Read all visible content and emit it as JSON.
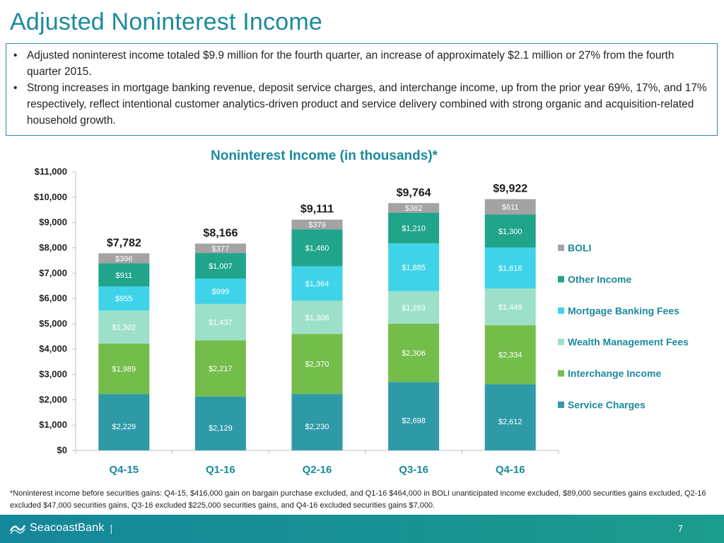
{
  "header": {
    "title": "Adjusted Noninterest Income"
  },
  "bullets": [
    "Adjusted noninterest income totaled $9.9 million for the fourth quarter, an increase of approximately $2.1 million or 27% from the fourth quarter 2015.",
    "Strong increases in mortgage banking revenue, deposit service charges, and interchange income, up from the prior year 69%, 17%, and 17% respectively, reflect intentional customer analytics-driven product and service delivery combined with strong organic and acquisition-related household growth."
  ],
  "chart_data": {
    "type": "bar",
    "stacked": true,
    "title": "Noninterest Income (in thousands)*",
    "xlabel": "",
    "ylabel": "",
    "ylim": [
      0,
      11000
    ],
    "yticks": [
      0,
      1000,
      2000,
      3000,
      4000,
      5000,
      6000,
      7000,
      8000,
      9000,
      10000,
      11000
    ],
    "ytick_labels": [
      "$0",
      "$1,000",
      "$2,000",
      "$3,000",
      "$4,000",
      "$5,000",
      "$6,000",
      "$7,000",
      "$8,000",
      "$9,000",
      "$10,000",
      "$11,000"
    ],
    "categories": [
      "Q4-15",
      "Q1-16",
      "Q2-16",
      "Q3-16",
      "Q4-16"
    ],
    "series": [
      {
        "name": "Service Charges",
        "color": "#2e9aa6",
        "values": [
          2229,
          2129,
          2230,
          2698,
          2612
        ],
        "labels": [
          "$2,229",
          "$2,129",
          "$2,230",
          "$2,698",
          "$2,612"
        ]
      },
      {
        "name": "Interchange Income",
        "color": "#74bd4b",
        "values": [
          1989,
          2217,
          2370,
          2306,
          2334
        ],
        "labels": [
          "$1,989",
          "$2,217",
          "$2,370",
          "$2,306",
          "$2,334"
        ]
      },
      {
        "name": "Wealth Management Fees",
        "color": "#9de0c9",
        "values": [
          1302,
          1437,
          1308,
          1283,
          1449
        ],
        "labels": [
          "$1,302",
          "$1,437",
          "$1,308",
          "$1,283",
          "$1,449"
        ]
      },
      {
        "name": "Mortgage Banking Fees",
        "color": "#3fd3ea",
        "values": [
          955,
          999,
          1364,
          1885,
          1616
        ],
        "labels": [
          "$955",
          "$999",
          "$1,364",
          "$1,885",
          "$1,616"
        ]
      },
      {
        "name": "Other Income",
        "color": "#21a58a",
        "values": [
          911,
          1007,
          1460,
          1210,
          1300
        ],
        "labels": [
          "$911",
          "$1,007",
          "$1,460",
          "$1,210",
          "$1,300"
        ]
      },
      {
        "name": "BOLI",
        "color": "#a3a3a3",
        "values": [
          396,
          377,
          379,
          382,
          611
        ],
        "labels": [
          "$396",
          "$377",
          "$379",
          "$382",
          "$611"
        ]
      }
    ],
    "totals": [
      "$7,782",
      "$8,166",
      "$9,111",
      "$9,764",
      "$9,922"
    ],
    "legend": {
      "position": "right",
      "order": [
        "BOLI",
        "Other Income",
        "Mortgage Banking Fees",
        "Wealth Management Fees",
        "Interchange Income",
        "Service Charges"
      ]
    },
    "grid": false
  },
  "footnote": "*Noninterest income before securities gains: Q4-15, $416,000 gain on bargain purchase excluded, and Q1-16 $464,000 in BOLI unanticipated income excluded, $89,000 securities gains excluded, Q2-16 excluded $47,000 securities gains, Q3-16 excluded $225,000 securities gains, and Q4-16 excluded securities gains $7,000.",
  "footer": {
    "logo_text": "SeacoastBank",
    "page_number": "7",
    "bar_color": "#15879b"
  }
}
